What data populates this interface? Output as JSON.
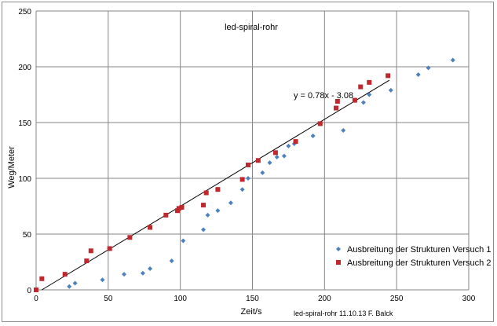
{
  "chart_data": {
    "type": "scatter",
    "title": "led-spiral-rohr",
    "xlabel": "Zeit/s",
    "ylabel": "Weg/Meter",
    "xlim": [
      0,
      300
    ],
    "ylim": [
      0,
      250
    ],
    "xticks": [
      "0",
      "50",
      "100",
      "150",
      "200",
      "250",
      "300"
    ],
    "yticks": [
      "0",
      "50",
      "100",
      "150",
      "200",
      "250"
    ],
    "grid": true,
    "legend_position": "bottom-right",
    "footer": "led-spiral-rohr  11.10.13  F. Balck",
    "trendline": {
      "label": "y = 0.78x - 3.08",
      "slope": 0.78,
      "intercept": -3.08,
      "x_range": [
        0,
        245
      ]
    },
    "series": [
      {
        "name": "Ausbreitung der Strukturen Versuch 1",
        "color": "#4f81bd",
        "marker": "diamond",
        "x": [
          23,
          27,
          46,
          61,
          74,
          79,
          94,
          102,
          116,
          119,
          126,
          135,
          143,
          147,
          157,
          162,
          167,
          172,
          175,
          179,
          192,
          213,
          227,
          231,
          246,
          265,
          272,
          289
        ],
        "y": [
          3,
          6,
          9,
          14,
          15,
          19,
          26,
          44,
          54,
          67,
          71,
          78,
          90,
          100,
          105,
          114,
          119,
          120,
          129,
          131,
          138,
          143,
          168,
          175,
          179,
          193,
          199,
          206
        ]
      },
      {
        "name": "Ausbreitung der Strukturen Versuch 2",
        "color": "#c0282d",
        "marker": "square",
        "x": [
          0,
          4,
          20,
          35,
          38,
          51,
          65,
          79,
          90,
          98,
          99,
          101,
          116,
          118,
          126,
          143,
          147,
          154,
          166,
          180,
          197,
          208,
          209,
          221,
          225,
          231,
          244
        ],
        "y": [
          0,
          10,
          14,
          26,
          35,
          37,
          47,
          56,
          67,
          71,
          73,
          74,
          76,
          87,
          90,
          99,
          112,
          116,
          123,
          133,
          149,
          163,
          169,
          170,
          182,
          186,
          192
        ]
      }
    ]
  }
}
